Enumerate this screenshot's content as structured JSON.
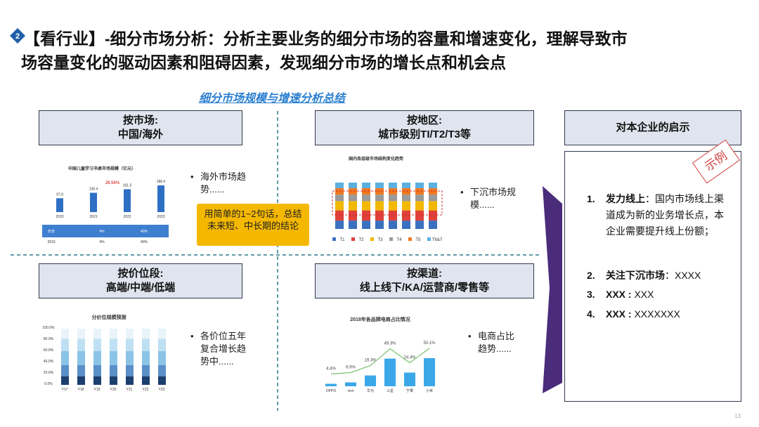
{
  "header": {
    "badge": "2",
    "title_lines": [
      "【看行业】-细分市场分析：分析主要业务的细分市场的容量和增速变化，理解导致市",
      "场容量变化的驱动因素和阻碍因素，发现细分市场的增长点和机会点"
    ]
  },
  "subtitle": "细分市场规模与增速分析总结",
  "quadrants": [
    {
      "heading": [
        "按市场:",
        "中国/海外"
      ],
      "note": "海外市场趋势......"
    },
    {
      "heading": [
        "按地区:",
        "城市级别TI/T2/T3等"
      ],
      "note": "下沉市场规模......"
    },
    {
      "heading": [
        "按价位段:",
        "高端/中端/低端"
      ],
      "note": "各价位五年复合增长趋势中......"
    },
    {
      "heading": [
        "按渠道:",
        "线上线下/KA/运营商/零售等"
      ],
      "note": "电商占比趋势......"
    }
  ],
  "callout": "用简单的1~2句话，总结未来短、中长期的结论",
  "panel": {
    "heading": "对本企业的启示",
    "stamp": "示例",
    "items": [
      {
        "num": "1.",
        "label": "发力线上",
        "text": "：国内市场线上渠道成为新的业务增长点，本企业需要提升线上份额；"
      },
      {
        "num": "2.",
        "label": "关注下沉市场",
        "text": "：XXXX"
      },
      {
        "num": "3.",
        "label": "XXX :",
        "text": " XXX"
      },
      {
        "num": "4.",
        "label": "XXX :",
        "text": " XXXXXXX"
      }
    ]
  },
  "mini_market": {
    "title": "中国儿童学习书桌市场规模（亿元）",
    "cagr": "26.56%",
    "values": [
      97.8,
      136.4,
      161.5,
      188.6
    ],
    "years": [
      "2020",
      "2021",
      "2022",
      "2023"
    ],
    "table": [
      "年份",
      "2019",
      "4%",
      "40%"
    ]
  },
  "mini_region": {
    "title": "国内各层级市场结构变化趋势",
    "legend": [
      "T1",
      "T2",
      "T3",
      "T4",
      "T5",
      "T6&7"
    ]
  },
  "mini_price": {
    "title": "分价位规模预测",
    "yticks": [
      "100.0%",
      "80.0%",
      "60.0%",
      "40.0%",
      "20.0%",
      "0.0%"
    ],
    "categories": [
      "Y17",
      "Y18",
      "Y19",
      "Y20",
      "Y21",
      "Y22",
      "Y23"
    ]
  },
  "mini_channel": {
    "title": "2018年各品牌电商占比情况",
    "categories": [
      "OPPO",
      "vivo",
      "华为",
      "三星",
      "宁果",
      "小米"
    ],
    "values": [
      4.4,
      6.9,
      19.3,
      49.3,
      24.4,
      50.1
    ],
    "value_labels": [
      "4.4%",
      "6.9%",
      "19.3%",
      "49.3%",
      "24.4%",
      "50.1%"
    ]
  },
  "page_number": "13"
}
